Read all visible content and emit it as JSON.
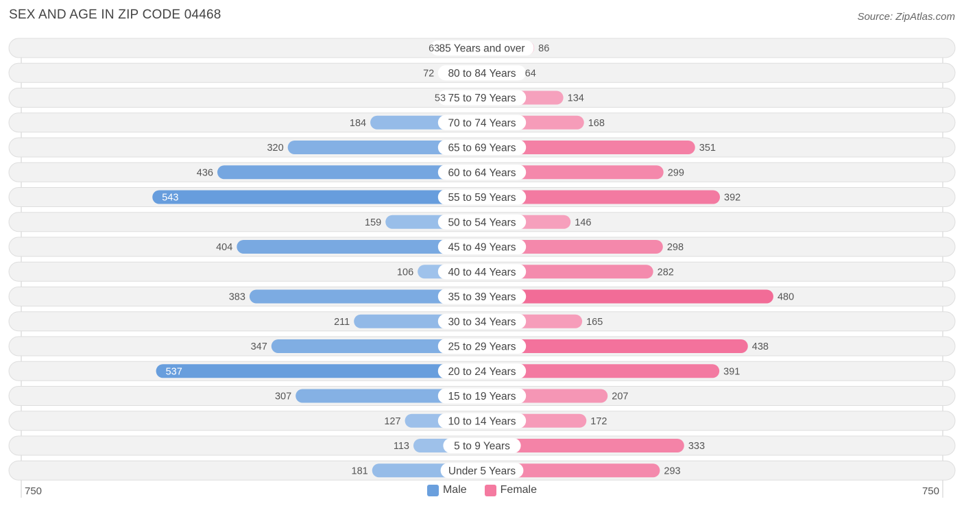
{
  "title": "SEX AND AGE IN ZIP CODE 04468",
  "source": "Source: ZipAtlas.com",
  "chart_data": {
    "type": "bar",
    "orientation": "horizontal-diverging",
    "categories": [
      "85 Years and over",
      "80 to 84 Years",
      "75 to 79 Years",
      "70 to 74 Years",
      "65 to 69 Years",
      "60 to 64 Years",
      "55 to 59 Years",
      "50 to 54 Years",
      "45 to 49 Years",
      "40 to 44 Years",
      "35 to 39 Years",
      "30 to 34 Years",
      "25 to 29 Years",
      "20 to 24 Years",
      "15 to 19 Years",
      "10 to 14 Years",
      "5 to 9 Years",
      "Under 5 Years"
    ],
    "series": [
      {
        "name": "Male",
        "color": "#6a9fdd",
        "values": [
          63,
          72,
          53,
          184,
          320,
          436,
          543,
          159,
          404,
          106,
          383,
          211,
          347,
          537,
          307,
          127,
          113,
          181
        ]
      },
      {
        "name": "Female",
        "color": "#f47aa0",
        "values": [
          86,
          64,
          134,
          168,
          351,
          299,
          392,
          146,
          298,
          282,
          480,
          165,
          438,
          391,
          207,
          172,
          333,
          293
        ]
      }
    ],
    "xlim": [
      -750,
      750
    ],
    "axis_min_label": "750",
    "axis_max_label": "750",
    "legend_position": "bottom-center"
  }
}
